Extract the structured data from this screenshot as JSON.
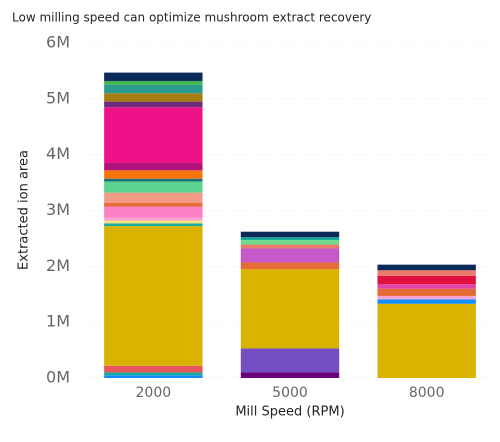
{
  "chart_data": {
    "type": "stacked_bar",
    "title": "Low milling speed can optimize mushroom extract recovery",
    "x_label": "Mill Speed (RPM)",
    "y_label": "Extracted ion area",
    "categories": [
      "2000",
      "5000",
      "8000"
    ],
    "ylim": [
      0,
      6000000
    ],
    "yticks": [
      {
        "value": 0,
        "label": "0M"
      },
      {
        "value": 1000000,
        "label": "1M"
      },
      {
        "value": 2000000,
        "label": "2M"
      },
      {
        "value": 3000000,
        "label": "3M"
      },
      {
        "value": 4000000,
        "label": "4M"
      },
      {
        "value": 5000000,
        "label": "5M"
      },
      {
        "value": 6000000,
        "label": "6M"
      }
    ],
    "grid": true,
    "series": [
      {
        "color": "#118dff",
        "values": [
          50000,
          null,
          null
        ]
      },
      {
        "color": "#1aab9b",
        "values": [
          50000,
          null,
          null
        ]
      },
      {
        "color": "#e8565f",
        "values": [
          120000,
          null,
          null
        ]
      },
      {
        "color": "#6b007b",
        "values": [
          null,
          100000,
          null
        ]
      },
      {
        "color": "#744ec2",
        "values": [
          null,
          430000,
          null
        ]
      },
      {
        "color": "#d9b300",
        "values": [
          2500000,
          1420000,
          1330000
        ]
      },
      {
        "color": "#118dff",
        "values": [
          null,
          null,
          80000
        ]
      },
      {
        "color": "#f5a3d3",
        "values": [
          null,
          null,
          60000
        ]
      },
      {
        "color": "#e66c37",
        "values": [
          null,
          120000,
          130000
        ]
      },
      {
        "color": "#c559c9",
        "values": [
          null,
          250000,
          null
        ]
      },
      {
        "color": "#e044a7",
        "values": [
          null,
          null,
          80000
        ]
      },
      {
        "color": "#e0103f",
        "values": [
          null,
          null,
          150000
        ]
      },
      {
        "color": "#ea7a6a",
        "values": [
          null,
          70000,
          100000
        ]
      },
      {
        "color": "#6fdc8c",
        "values": [
          null,
          80000,
          null
        ]
      },
      {
        "color": "#1aab9b",
        "values": [
          50000,
          50000,
          null
        ]
      },
      {
        "color": "#f6e27f",
        "values": [
          50000,
          null,
          null
        ]
      },
      {
        "color": "#f5a3d3",
        "values": [
          50000,
          null,
          null
        ]
      },
      {
        "color": "#fd7fc4",
        "values": [
          200000,
          null,
          null
        ]
      },
      {
        "color": "#e66c37",
        "values": [
          70000,
          null,
          null
        ]
      },
      {
        "color": "#f49c86",
        "values": [
          180000,
          null,
          null
        ]
      },
      {
        "color": "#5ed38f",
        "values": [
          200000,
          null,
          null
        ]
      },
      {
        "color": "#197278",
        "values": [
          50000,
          null,
          null
        ]
      },
      {
        "color": "#f6750b",
        "values": [
          150000,
          null,
          null
        ]
      },
      {
        "color": "#b0127a",
        "values": [
          130000,
          null,
          null
        ]
      },
      {
        "color": "#ee1289",
        "values": [
          1000000,
          null,
          null
        ]
      },
      {
        "color": "#6b2a7b",
        "values": [
          100000,
          null,
          null
        ]
      },
      {
        "color": "#a57c12",
        "values": [
          150000,
          null,
          null
        ]
      },
      {
        "color": "#2a9d8f",
        "values": [
          150000,
          null,
          null
        ]
      },
      {
        "color": "#3fb450",
        "values": [
          70000,
          null,
          null
        ]
      },
      {
        "color": "#0c2a57",
        "values": [
          150000,
          100000,
          100000
        ]
      }
    ]
  }
}
